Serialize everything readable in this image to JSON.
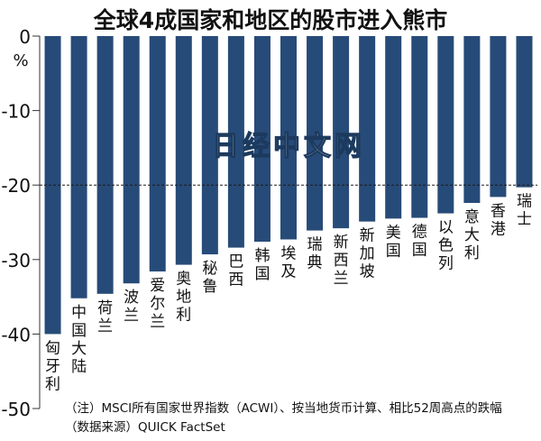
{
  "chart_data": {
    "type": "bar",
    "title": "全球4成国家和地区的股市进入熊市",
    "ylabel": "%",
    "ylim": [
      -50,
      0
    ],
    "yticks": [
      0,
      -10,
      -20,
      -30,
      -40,
      -50
    ],
    "reference_line": -20,
    "watermark": "日经中文网",
    "categories": [
      "匈牙利",
      "中国大陆",
      "荷兰",
      "波兰",
      "爱尔兰",
      "奥地利",
      "秘鲁",
      "巴西",
      "韩国",
      "埃及",
      "瑞典",
      "新西兰",
      "新加坡",
      "美国",
      "德国",
      "以色列",
      "意大利",
      "香港",
      "瑞士"
    ],
    "values": [
      -40.0,
      -35.2,
      -34.6,
      -33.2,
      -31.6,
      -30.7,
      -29.3,
      -28.4,
      -27.6,
      -27.3,
      -26.1,
      -25.8,
      -24.9,
      -24.5,
      -24.4,
      -23.8,
      -22.4,
      -21.6,
      -20.3
    ],
    "bar_color": "#274b78",
    "notes": [
      "（注）MSCI所有国家世界指数（ACWI）、按当地货币计算、相比52周高点的跌幅",
      "（数据来源）QUICK FactSet"
    ]
  }
}
